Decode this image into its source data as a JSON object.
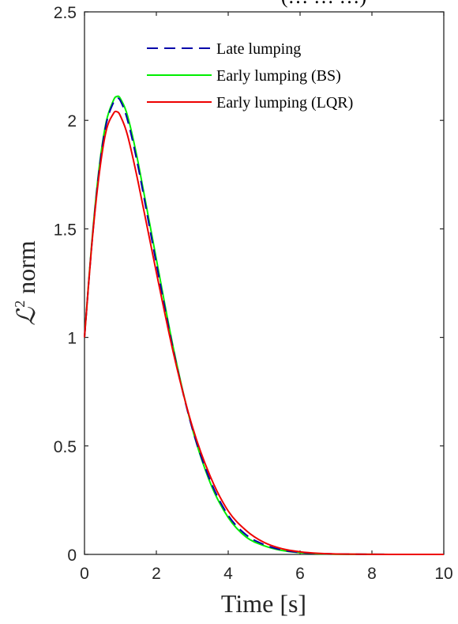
{
  "chart_data": {
    "type": "line",
    "title": "(… … …)",
    "xlabel": "Time [s]",
    "ylabel_script": "ℒ",
    "ylabel_sup": "2",
    "ylabel_rest": "norm",
    "xlim": [
      0,
      10
    ],
    "ylim": [
      0,
      2.5
    ],
    "xticks": [
      0,
      2,
      4,
      6,
      8,
      10
    ],
    "xtick_labels": [
      "0",
      "2",
      "4",
      "6",
      "8",
      "10"
    ],
    "yticks": [
      0,
      0.5,
      1,
      1.5,
      2,
      2.5
    ],
    "ytick_labels": [
      "0",
      "0.5",
      "1",
      "1.5",
      "2",
      "2.5"
    ],
    "grid": false,
    "legend_position": "top-right",
    "series": [
      {
        "name": "Late lumping",
        "color": "#0000aa",
        "dash": "dashed",
        "x": [
          0,
          0.2,
          0.4,
          0.6,
          0.8,
          0.9,
          1.0,
          1.2,
          1.5,
          2.0,
          2.5,
          3.0,
          3.5,
          4.0,
          4.5,
          5.0,
          5.5,
          6.0,
          6.5,
          7.0,
          8.0,
          9.0,
          10.0
        ],
        "y": [
          1.0,
          1.42,
          1.76,
          1.98,
          2.08,
          2.1,
          2.09,
          2.0,
          1.78,
          1.34,
          0.92,
          0.58,
          0.34,
          0.18,
          0.09,
          0.045,
          0.02,
          0.009,
          0.004,
          0.002,
          0.0005,
          0.0001,
          0.0
        ]
      },
      {
        "name": "Early lumping (BS)",
        "color": "#00ee00",
        "dash": "solid",
        "x": [
          0,
          0.2,
          0.4,
          0.6,
          0.8,
          0.9,
          1.0,
          1.2,
          1.5,
          2.0,
          2.5,
          3.0,
          3.5,
          4.0,
          4.5,
          5.0,
          5.5,
          6.0,
          6.5,
          7.0,
          8.0,
          9.0,
          10.0
        ],
        "y": [
          1.0,
          1.43,
          1.77,
          1.99,
          2.09,
          2.11,
          2.1,
          2.02,
          1.8,
          1.36,
          0.93,
          0.58,
          0.33,
          0.17,
          0.08,
          0.04,
          0.018,
          0.008,
          0.003,
          0.001,
          0.0004,
          0.0001,
          0.0
        ]
      },
      {
        "name": "Early lumping (LQR)",
        "color": "#ee0000",
        "dash": "solid",
        "x": [
          0,
          0.2,
          0.4,
          0.6,
          0.8,
          0.9,
          1.0,
          1.2,
          1.5,
          2.0,
          2.5,
          3.0,
          3.5,
          4.0,
          4.5,
          5.0,
          5.5,
          6.0,
          6.5,
          7.0,
          8.0,
          9.0,
          10.0
        ],
        "y": [
          1.0,
          1.42,
          1.74,
          1.95,
          2.03,
          2.04,
          2.02,
          1.93,
          1.71,
          1.3,
          0.91,
          0.59,
          0.36,
          0.2,
          0.11,
          0.055,
          0.026,
          0.012,
          0.005,
          0.002,
          0.0005,
          0.0001,
          0.0
        ]
      }
    ]
  }
}
